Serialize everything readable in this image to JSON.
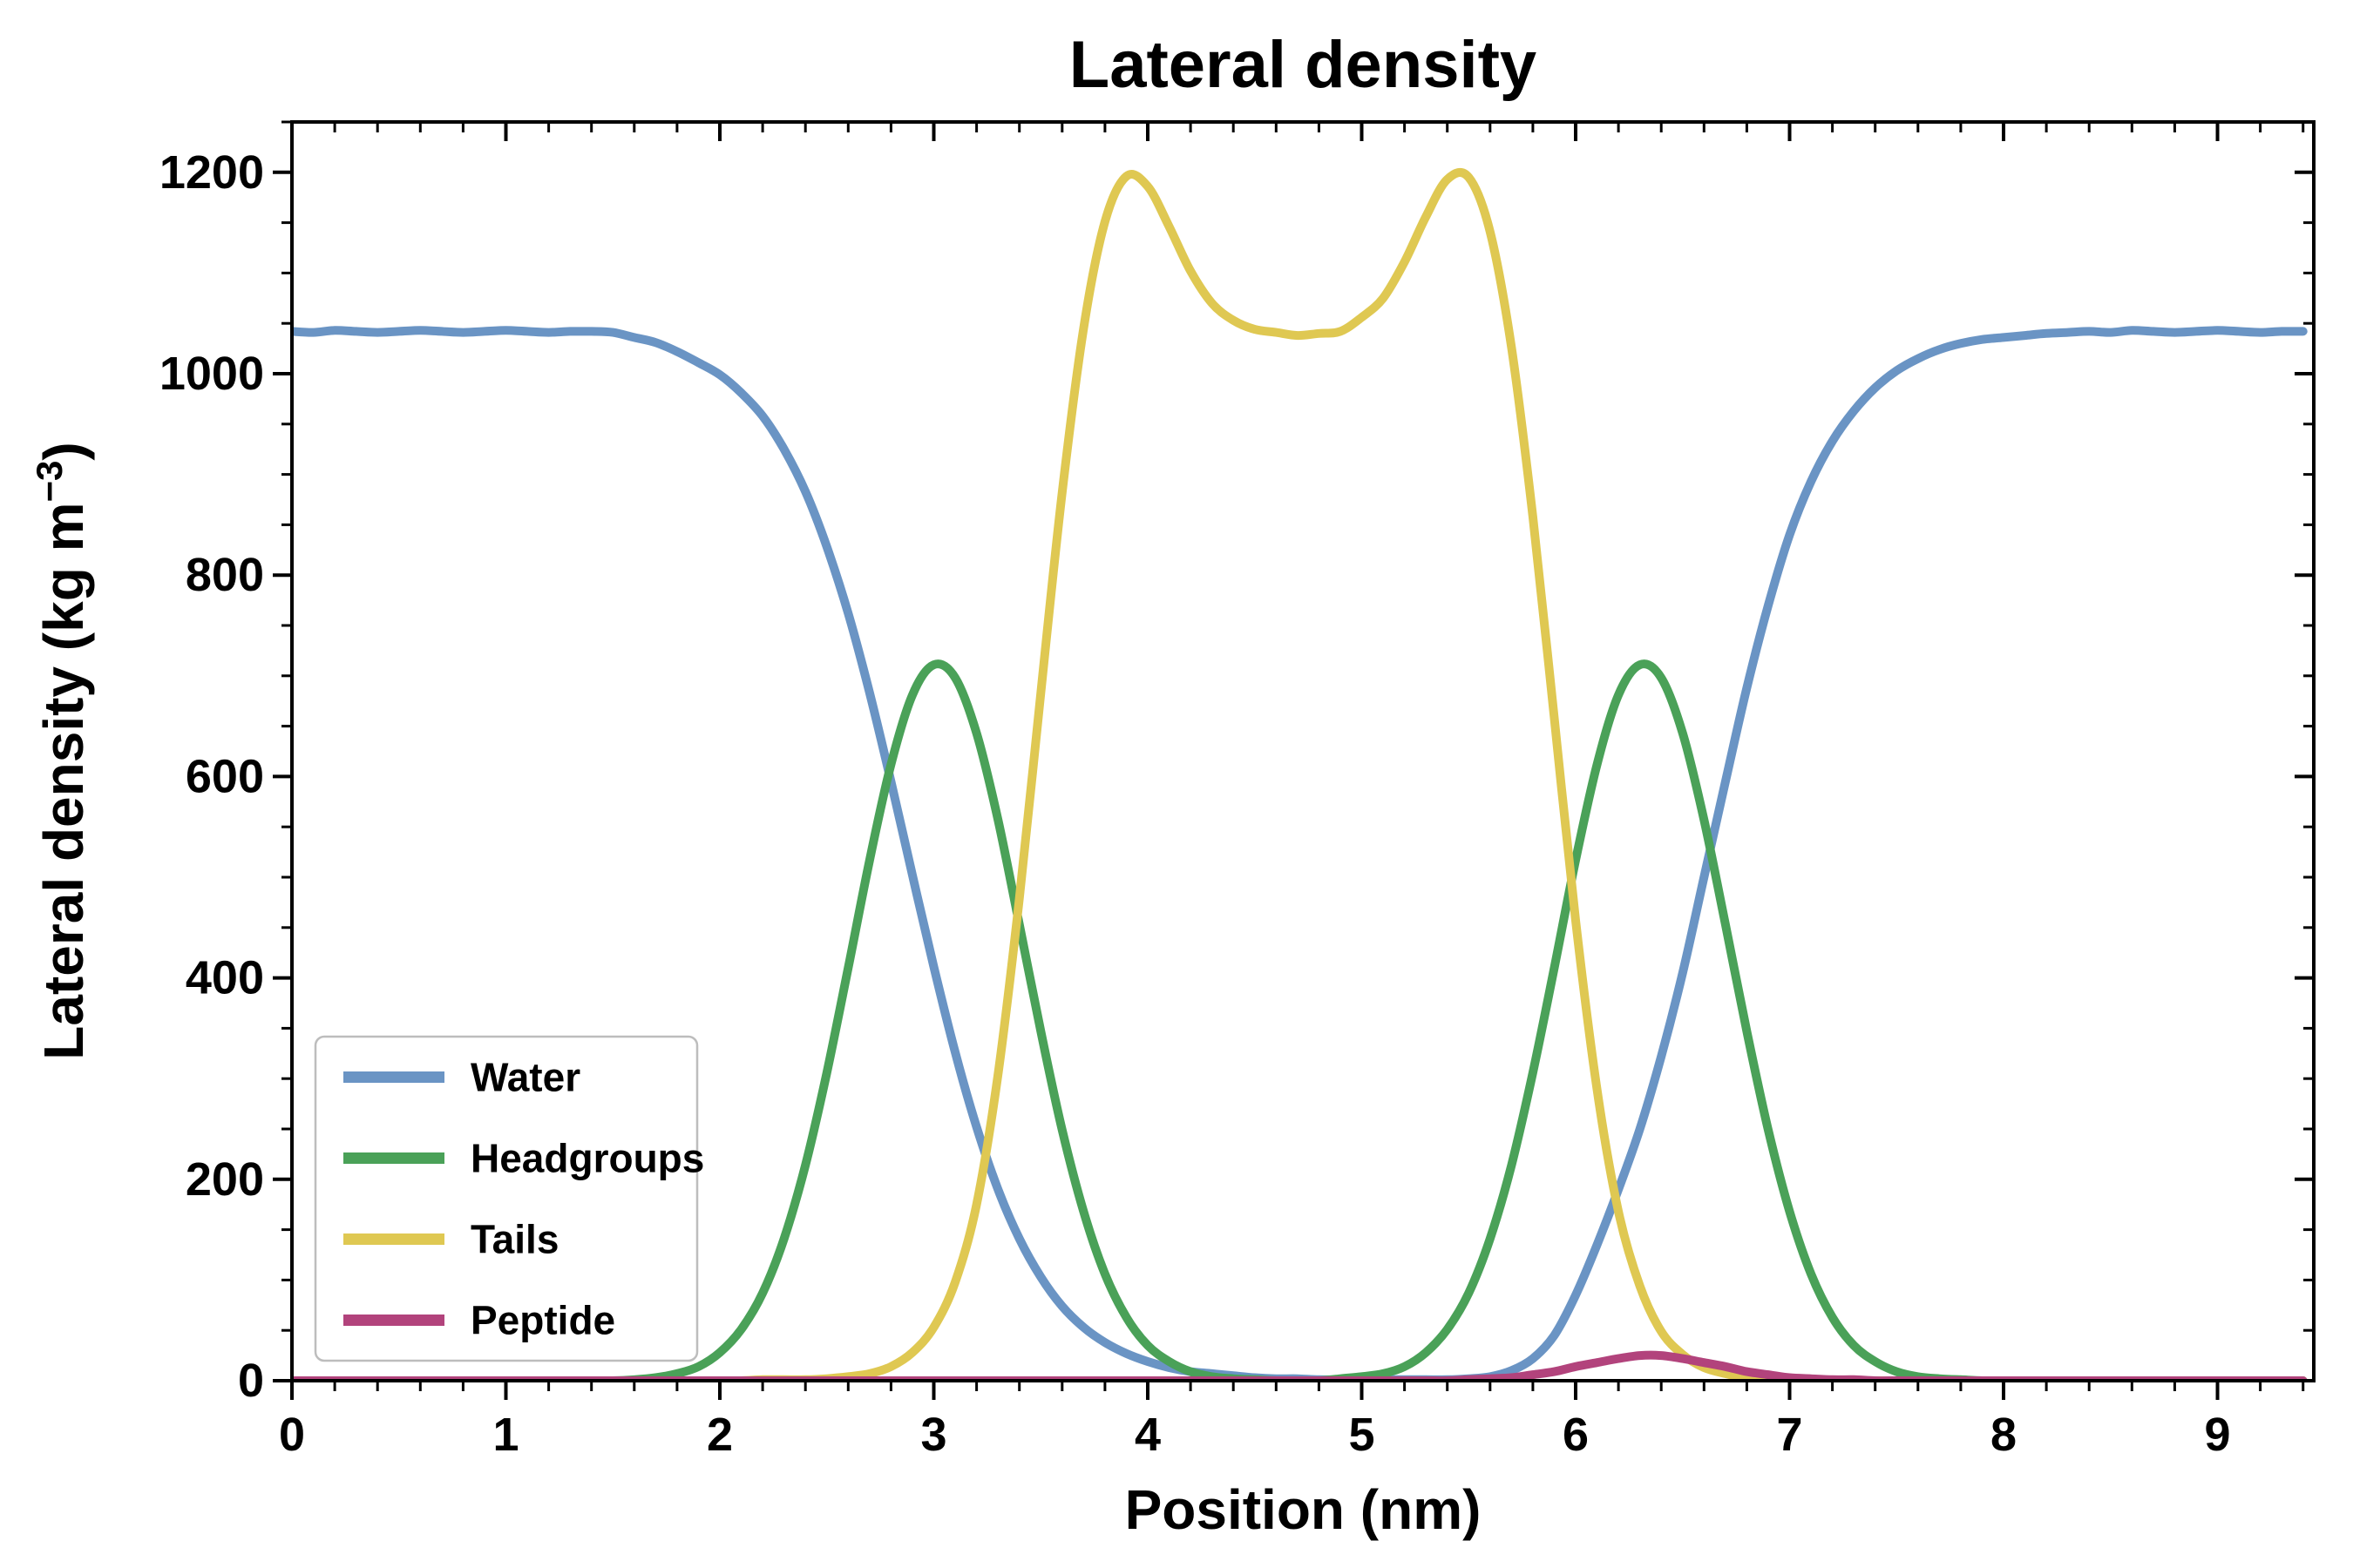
{
  "chart_data": {
    "type": "line",
    "title": "Lateral density",
    "xlabel": "Position (nm)",
    "ylabel": "Lateral density (kg m⁻³)",
    "ylabel_parts": {
      "pre": "Lateral density (kg m",
      "sup": "−3",
      "post": ")"
    },
    "xlim": [
      0,
      9.45
    ],
    "ylim": [
      0,
      1250
    ],
    "xticks": [
      0,
      1,
      2,
      3,
      4,
      5,
      6,
      7,
      8,
      9
    ],
    "yticks": [
      0,
      200,
      400,
      600,
      800,
      1000,
      1200
    ],
    "x_minor_step": 0.2,
    "y_minor_step": 50,
    "grid": false,
    "axis_color": "#000000",
    "legend": {
      "position": "lower-left",
      "entries": [
        "Water",
        "Headgroups",
        "Tails",
        "Peptide"
      ]
    },
    "x": [
      0,
      0.1,
      0.2,
      0.3,
      0.4,
      0.5,
      0.6,
      0.7,
      0.8,
      0.9,
      1,
      1.1,
      1.2,
      1.3,
      1.4,
      1.5,
      1.6,
      1.7,
      1.8,
      1.9,
      2,
      2.1,
      2.2,
      2.3,
      2.4,
      2.5,
      2.6,
      2.7,
      2.8,
      2.9,
      3,
      3.1,
      3.2,
      3.3,
      3.4,
      3.5,
      3.6,
      3.7,
      3.8,
      3.9,
      4,
      4.1,
      4.2,
      4.3,
      4.4,
      4.5,
      4.6,
      4.7,
      4.8,
      4.9,
      5,
      5.1,
      5.2,
      5.3,
      5.4,
      5.5,
      5.6,
      5.7,
      5.8,
      5.9,
      6,
      6.1,
      6.2,
      6.3,
      6.4,
      6.5,
      6.6,
      6.7,
      6.8,
      6.9,
      7,
      7.1,
      7.2,
      7.3,
      7.4,
      7.5,
      7.6,
      7.7,
      7.8,
      7.9,
      8,
      8.1,
      8.2,
      8.3,
      8.4,
      8.5,
      8.6,
      8.7,
      8.8,
      8.9,
      9,
      9.1,
      9.2,
      9.3,
      9.4
    ],
    "series": [
      {
        "name": "Water",
        "color": "#6A94C4",
        "values": [
          1042,
          1041,
          1043,
          1042,
          1041,
          1042,
          1043,
          1042,
          1041,
          1042,
          1043,
          1042,
          1041,
          1042,
          1042,
          1041,
          1036,
          1031,
          1022,
          1011,
          999,
          981,
          958,
          925,
          883,
          828,
          762,
          683,
          595,
          502,
          411,
          326,
          252,
          190,
          141,
          103,
          74,
          53,
          38,
          27,
          19,
          13,
          9,
          7,
          5,
          3,
          2,
          2,
          1,
          1,
          1,
          1,
          1,
          1,
          1,
          2,
          4,
          10,
          22,
          45,
          85,
          135,
          190,
          250,
          322,
          405,
          500,
          595,
          688,
          770,
          840,
          893,
          933,
          963,
          986,
          1003,
          1015,
          1024,
          1030,
          1034,
          1036,
          1038,
          1040,
          1041,
          1042,
          1041,
          1043,
          1042,
          1041,
          1042,
          1043,
          1042,
          1041,
          1042,
          1042
        ]
      },
      {
        "name": "Headgroups",
        "color": "#4AA158",
        "values": [
          0,
          0,
          0,
          0,
          0,
          0,
          0,
          0,
          0,
          0,
          0,
          0,
          0,
          0,
          0,
          0,
          1,
          3,
          7,
          14,
          28,
          51,
          87,
          141,
          214,
          306,
          410,
          517,
          612,
          681,
          711,
          698,
          643,
          557,
          453,
          347,
          249,
          168,
          106,
          63,
          35,
          19,
          9,
          4,
          2,
          1,
          0,
          0,
          0,
          2,
          4,
          7,
          14,
          28,
          51,
          87,
          141,
          214,
          306,
          410,
          517,
          612,
          681,
          711,
          698,
          643,
          557,
          453,
          347,
          249,
          168,
          106,
          63,
          35,
          19,
          9,
          4,
          2,
          1,
          0,
          0,
          0,
          0,
          0,
          0,
          0,
          0,
          0,
          0,
          0,
          0,
          0,
          0,
          0,
          0
        ]
      },
      {
        "name": "Tails",
        "color": "#DFC852",
        "values": [
          0,
          0,
          0,
          0,
          0,
          0,
          0,
          0,
          0,
          0,
          0,
          0,
          0,
          0,
          0,
          0,
          0,
          0,
          0,
          0,
          0,
          0,
          1,
          1,
          1,
          2,
          4,
          7,
          14,
          28,
          53,
          98,
          175,
          304,
          479,
          683,
          882,
          1045,
          1151,
          1196,
          1186,
          1146,
          1102,
          1070,
          1053,
          1044,
          1041,
          1038,
          1040,
          1042,
          1056,
          1075,
          1111,
          1156,
          1193,
          1195,
          1141,
          1026,
          858,
          658,
          457,
          289,
          168,
          94,
          49,
          26,
          13,
          7,
          3,
          2,
          1,
          0,
          0,
          0,
          0,
          0,
          0,
          0,
          0,
          0,
          0,
          0,
          0,
          0,
          0,
          0,
          0,
          0,
          0,
          0,
          0,
          0,
          0,
          0,
          0
        ]
      },
      {
        "name": "Peptide",
        "color": "#B2437C",
        "values": [
          0,
          0,
          0,
          0,
          0,
          0,
          0,
          0,
          0,
          0,
          0,
          0,
          0,
          0,
          0,
          0,
          0,
          0,
          0,
          0,
          0,
          0,
          0,
          0,
          0,
          0,
          0,
          0,
          0,
          0,
          0,
          0,
          0,
          0,
          0,
          0,
          0,
          0,
          0,
          0,
          0,
          0,
          0,
          0,
          0,
          0,
          0,
          0,
          0,
          0,
          0,
          0,
          0,
          0,
          0,
          1,
          2,
          3,
          6,
          9,
          14,
          18,
          22,
          25,
          25,
          22,
          18,
          14,
          9,
          6,
          3,
          2,
          1,
          1,
          0,
          0,
          0,
          0,
          0,
          0,
          0,
          0,
          0,
          0,
          0,
          0,
          0,
          0,
          0,
          0,
          0,
          0,
          0,
          0,
          0
        ]
      }
    ]
  }
}
